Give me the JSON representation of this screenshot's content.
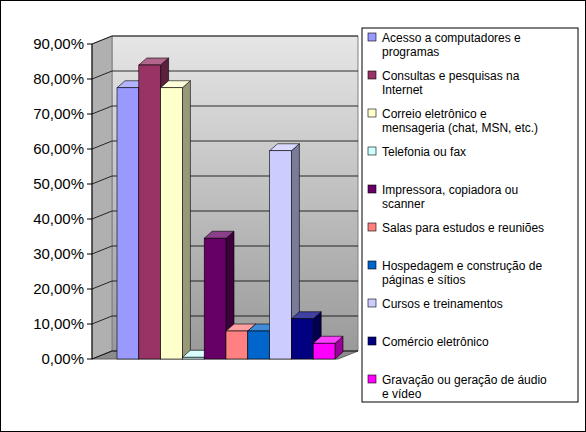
{
  "chart_data": {
    "type": "bar",
    "categories": [
      null
    ],
    "series": [
      {
        "name": "Acesso a computadores e programas",
        "color": "#9999ff",
        "values": [
          77.5
        ]
      },
      {
        "name": "Consultas e pesquisas na Internet",
        "color": "#993366",
        "values": [
          84
        ]
      },
      {
        "name": "Correio eletrônico e mensageria (chat, MSN, etc.)",
        "color": "#ffffcc",
        "values": [
          77.5
        ]
      },
      {
        "name": "Telefonia ou fax",
        "color": "#ccffff",
        "values": [
          0.5
        ]
      },
      {
        "name": "Impressora, copiadora ou scanner",
        "color": "#660066",
        "values": [
          34.5
        ]
      },
      {
        "name": "Salas para estudos e reuniões",
        "color": "#ff8080",
        "values": [
          8
        ]
      },
      {
        "name": "Hospedagem e construção de páginas e sítios",
        "color": "#0066cc",
        "values": [
          8
        ]
      },
      {
        "name": "Cursos e treinamentos",
        "color": "#ccccff",
        "values": [
          59.5
        ]
      },
      {
        "name": "Comércio eletrônico",
        "color": "#000080",
        "values": [
          11.5
        ]
      },
      {
        "name": "Gravação ou geração de áudio e vídeo",
        "color": "#ff00ff",
        "values": [
          4.5
        ]
      }
    ],
    "ylim": [
      0,
      90
    ],
    "yticks": [
      {
        "value": 0,
        "label": "0,00%"
      },
      {
        "value": 10,
        "label": "10,00%"
      },
      {
        "value": 20,
        "label": "20,00%"
      },
      {
        "value": 30,
        "label": "30,00%"
      },
      {
        "value": 40,
        "label": "40,00%"
      },
      {
        "value": 50,
        "label": "50,00%"
      },
      {
        "value": 60,
        "label": "60,00%"
      },
      {
        "value": 70,
        "label": "70,00%"
      },
      {
        "value": 80,
        "label": "80,00%"
      },
      {
        "value": 90,
        "label": "90,00%"
      }
    ],
    "grid": true,
    "legend": "right"
  }
}
